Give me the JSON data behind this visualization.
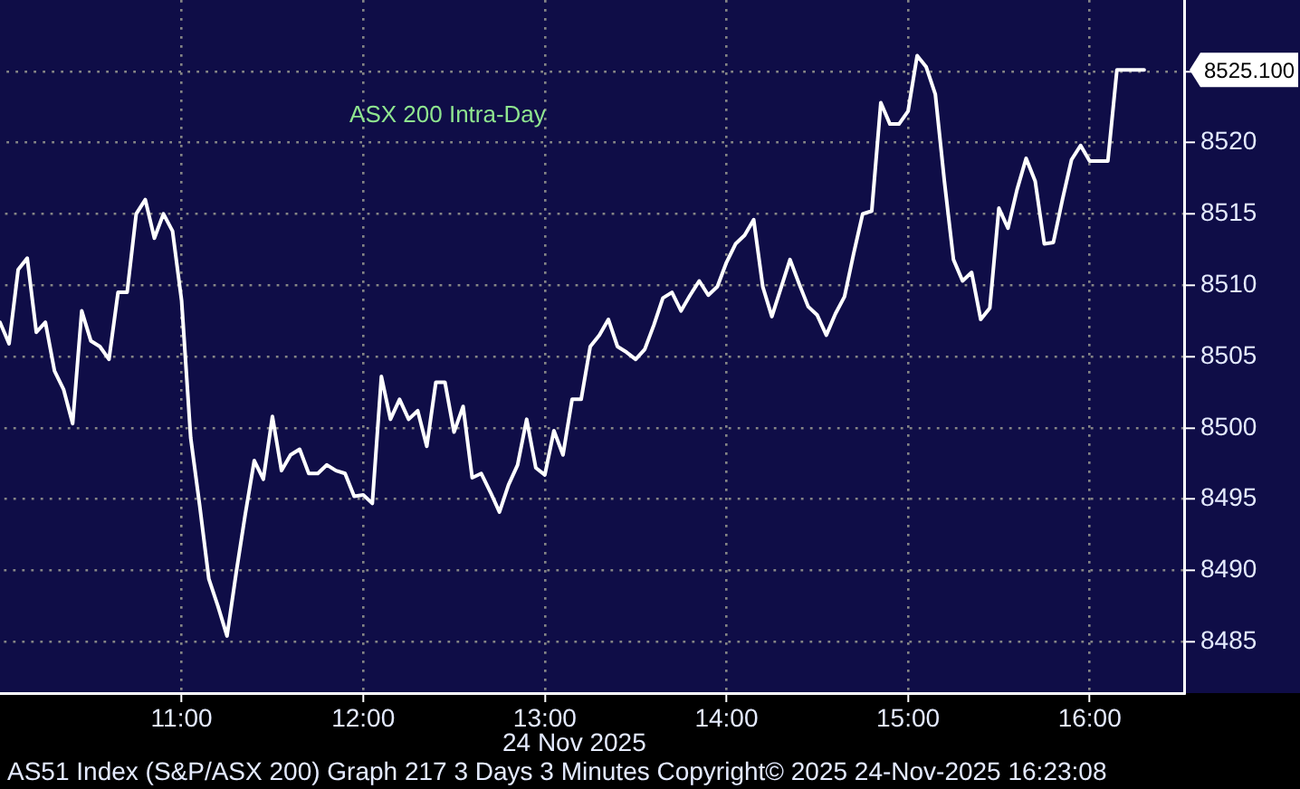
{
  "chart_data": {
    "type": "line",
    "title": "ASX 200 Intra-Day",
    "xlabel": "24 Nov 2025",
    "annotations": [
      "8525.100",
      "AS51 Index (S&P/ASX 200) Graph 217 3 Days 3 Minutes Copyright© 2025 24-Nov-2025 16:23:08"
    ],
    "x": [
      10,
      10.05,
      10.1,
      10.15,
      10.2,
      10.25,
      10.3,
      10.35,
      10.4,
      10.45,
      10.5,
      10.55,
      10.6,
      10.65,
      10.7,
      10.75,
      10.8,
      10.85,
      10.9,
      10.95,
      11,
      11.05,
      11.1,
      11.15,
      11.2,
      11.25,
      11.3,
      11.35,
      11.4,
      11.45,
      11.5,
      11.55,
      11.6,
      11.65,
      11.7,
      11.75,
      11.8,
      11.85,
      11.9,
      11.95,
      12,
      12.05,
      12.1,
      12.15,
      12.2,
      12.25,
      12.3,
      12.35,
      12.4,
      12.45,
      12.5,
      12.55,
      12.6,
      12.65,
      12.7,
      12.75,
      12.8,
      12.85,
      12.9,
      12.95,
      13,
      13.05,
      13.1,
      13.15,
      13.2,
      13.25,
      13.3,
      13.35,
      13.4,
      13.45,
      13.5,
      13.55,
      13.6,
      13.65,
      13.7,
      13.75,
      13.8,
      13.85,
      13.9,
      13.95,
      14,
      14.05,
      14.1,
      14.15,
      14.2,
      14.25,
      14.3,
      14.35,
      14.4,
      14.45,
      14.5,
      14.55,
      14.6,
      14.65,
      14.7,
      14.75,
      14.8,
      14.85,
      14.9,
      14.95,
      15,
      15.05,
      15.1,
      15.15,
      15.2,
      15.25,
      15.3,
      15.35,
      15.4,
      15.45,
      15.5,
      15.55,
      15.6,
      15.65,
      15.7,
      15.75,
      15.8,
      15.85,
      15.9,
      15.95,
      16,
      16.05,
      16.1,
      16.15,
      16.2,
      16.25,
      16.3
    ],
    "series": [
      {
        "color": "#ffffff",
        "values": [
          8507.4,
          8505.9,
          8511.1,
          8511.9,
          8506.7,
          8507.4,
          8504.0,
          8502.7,
          8500.3,
          8508.2,
          8506.1,
          8505.7,
          8504.8,
          8509.5,
          8509.5,
          8515.0,
          8516.0,
          8513.3,
          8515.0,
          8513.8,
          8508.9,
          8499.3,
          8494.5,
          8489.4,
          8487.5,
          8485.4,
          8489.8,
          8493.9,
          8497.7,
          8496.4,
          8500.8,
          8497.0,
          8498.1,
          8498.5,
          8496.8,
          8496.8,
          8497.4,
          8497.0,
          8496.8,
          8495.2,
          8495.3,
          8494.7,
          8503.6,
          8500.6,
          8502.0,
          8500.6,
          8501.2,
          8498.7,
          8503.2,
          8503.2,
          8499.7,
          8501.5,
          8496.5,
          8496.8,
          8495.5,
          8494.1,
          8496.0,
          8497.4,
          8500.6,
          8497.2,
          8496.7,
          8499.8,
          8498.1,
          8502.0,
          8502.0,
          8505.7,
          8506.5,
          8507.6,
          8505.7,
          8505.3,
          8504.8,
          8505.5,
          8507.2,
          8509.1,
          8509.5,
          8508.2,
          8509.3,
          8510.3,
          8509.3,
          8509.9,
          8511.6,
          8512.9,
          8513.5,
          8514.6,
          8509.9,
          8507.8,
          8509.8,
          8511.8,
          8510.1,
          8508.5,
          8507.9,
          8506.5,
          8508.0,
          8509.2,
          8512.2,
          8515.0,
          8515.2,
          8522.8,
          8521.3,
          8521.3,
          8522.2,
          8526.1,
          8525.3,
          8523.4,
          8517.3,
          8511.8,
          8510.3,
          8510.9,
          8507.6,
          8508.4,
          8515.4,
          8514.0,
          8516.7,
          8518.9,
          8517.3,
          8512.9,
          8513.0,
          8516.0,
          8518.8,
          8519.8,
          8518.7,
          8518.7,
          8518.7,
          8525.1,
          8525.1,
          8525.1,
          8525.1
        ]
      }
    ],
    "xlim": [
      10,
      16.52
    ],
    "xticks": [
      {
        "value": 11,
        "label": "11:00"
      },
      {
        "value": 12,
        "label": "12:00"
      },
      {
        "value": 13,
        "label": "13:00"
      },
      {
        "value": 14,
        "label": "14:00"
      },
      {
        "value": 15,
        "label": "15:00"
      },
      {
        "value": 16,
        "label": "16:00"
      }
    ],
    "ylim": [
      8481.4,
      8530
    ],
    "yticks": [
      8485,
      8490,
      8495,
      8500,
      8505,
      8510,
      8515,
      8520,
      {
        "value": 8525,
        "label": null
      }
    ],
    "grid": true
  }
}
